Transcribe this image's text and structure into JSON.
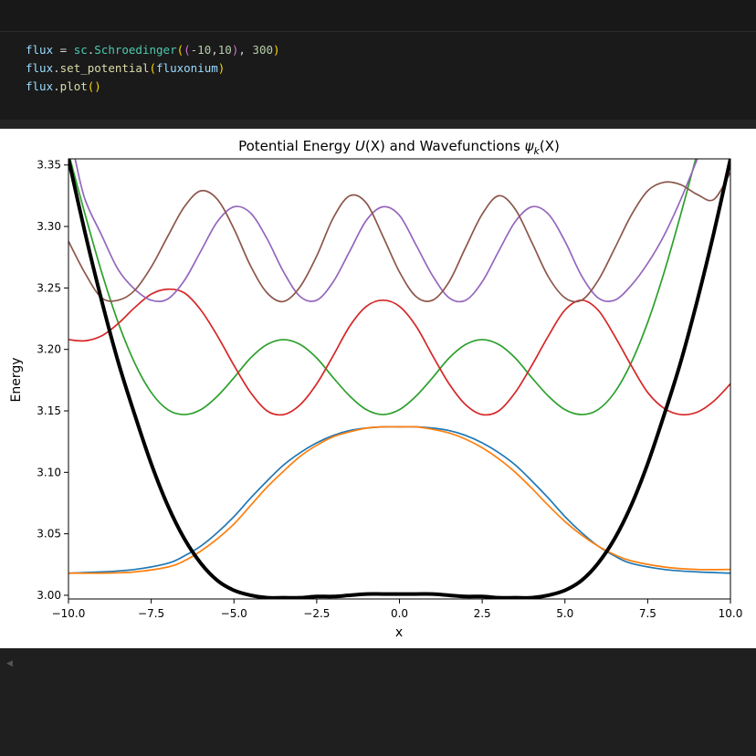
{
  "code": {
    "line1": [
      {
        "t": "flux",
        "c": "tok-var"
      },
      {
        "t": " = ",
        "c": "tok-op"
      },
      {
        "t": "sc",
        "c": "tok-mod"
      },
      {
        "t": ".",
        "c": "tok-op"
      },
      {
        "t": "Schroedinger",
        "c": "tok-mod"
      },
      {
        "t": "(",
        "c": "tok-br1"
      },
      {
        "t": "(",
        "c": "tok-br2"
      },
      {
        "t": "-10",
        "c": "tok-num"
      },
      {
        "t": ",",
        "c": "tok-op"
      },
      {
        "t": "10",
        "c": "tok-num"
      },
      {
        "t": ")",
        "c": "tok-br2"
      },
      {
        "t": ", ",
        "c": "tok-op"
      },
      {
        "t": "300",
        "c": "tok-num"
      },
      {
        "t": ")",
        "c": "tok-br1"
      }
    ],
    "line2": [
      {
        "t": "flux",
        "c": "tok-var"
      },
      {
        "t": ".",
        "c": "tok-op"
      },
      {
        "t": "set_potential",
        "c": "tok-fn"
      },
      {
        "t": "(",
        "c": "tok-br1"
      },
      {
        "t": "fluxonium",
        "c": "tok-var"
      },
      {
        "t": ")",
        "c": "tok-br1"
      }
    ],
    "line3": [
      {
        "t": "flux",
        "c": "tok-var"
      },
      {
        "t": ".",
        "c": "tok-op"
      },
      {
        "t": "plot",
        "c": "tok-fn"
      },
      {
        "t": "()",
        "c": "tok-br1"
      }
    ]
  },
  "chart_data": {
    "type": "line",
    "title": "Potential Energy U(X) and Wavefunctions ψk(X)",
    "title_parts": {
      "prefix": "Potential Energy ",
      "u": "U",
      "ux": "(X)",
      "mid": " and Wavefunctions ",
      "psi": "ψ",
      "k": "k",
      "px": "(X)"
    },
    "xlabel": "x",
    "ylabel": "Energy",
    "xlim": [
      -10,
      10
    ],
    "ylim": [
      2.997,
      3.355
    ],
    "xticks": [
      -10,
      -7.5,
      -5,
      -2.5,
      0,
      2.5,
      5,
      7.5,
      10
    ],
    "xtick_labels": [
      "−10.0",
      "−7.5",
      "−5.0",
      "−2.5",
      "0.0",
      "2.5",
      "5.0",
      "7.5",
      "10.0"
    ],
    "yticks": [
      3.0,
      3.05,
      3.1,
      3.15,
      3.2,
      3.25,
      3.3,
      3.35
    ],
    "ytick_labels": [
      "3.00",
      "3.05",
      "3.10",
      "3.15",
      "3.20",
      "3.25",
      "3.30",
      "3.35"
    ],
    "grid": false,
    "series": [
      {
        "color": "#000000",
        "points": [
          [
            -10,
            3.355
          ],
          [
            -9.5,
            3.295
          ],
          [
            -9,
            3.24
          ],
          [
            -8.5,
            3.19
          ],
          [
            -8,
            3.147
          ],
          [
            -7.5,
            3.107
          ],
          [
            -7,
            3.073
          ],
          [
            -6.5,
            3.046
          ],
          [
            -6,
            3.026
          ],
          [
            -5.5,
            3.012
          ],
          [
            -5,
            3.004
          ],
          [
            -4.5,
            3.0
          ],
          [
            -4,
            2.998
          ],
          [
            -3.5,
            2.998
          ],
          [
            -3,
            2.998
          ],
          [
            -2.5,
            2.999
          ],
          [
            -2,
            2.999
          ],
          [
            -1.5,
            3.0
          ],
          [
            -1,
            3.001
          ],
          [
            -0.5,
            3.001
          ],
          [
            0,
            3.001
          ],
          [
            0.5,
            3.001
          ],
          [
            1,
            3.001
          ],
          [
            1.5,
            3.0
          ],
          [
            2,
            2.999
          ],
          [
            2.5,
            2.999
          ],
          [
            3,
            2.998
          ],
          [
            3.5,
            2.998
          ],
          [
            4,
            2.998
          ],
          [
            4.5,
            3.0
          ],
          [
            5,
            3.004
          ],
          [
            5.5,
            3.012
          ],
          [
            6,
            3.026
          ],
          [
            6.5,
            3.046
          ],
          [
            7,
            3.073
          ],
          [
            7.5,
            3.107
          ],
          [
            8,
            3.147
          ],
          [
            8.5,
            3.19
          ],
          [
            9,
            3.24
          ],
          [
            9.5,
            3.295
          ],
          [
            10,
            3.355
          ]
        ]
      },
      {
        "color": "#1f77b4",
        "points": [
          [
            -10,
            3.018
          ],
          [
            -9,
            3.019
          ],
          [
            -8,
            3.021
          ],
          [
            -7,
            3.026
          ],
          [
            -6.5,
            3.032
          ],
          [
            -6,
            3.04
          ],
          [
            -5.5,
            3.051
          ],
          [
            -5,
            3.064
          ],
          [
            -4.5,
            3.079
          ],
          [
            -4,
            3.093
          ],
          [
            -3.5,
            3.106
          ],
          [
            -3,
            3.116
          ],
          [
            -2.5,
            3.124
          ],
          [
            -2,
            3.13
          ],
          [
            -1.5,
            3.134
          ],
          [
            -1,
            3.136
          ],
          [
            -0.5,
            3.137
          ],
          [
            0,
            3.137
          ],
          [
            0.5,
            3.137
          ],
          [
            1,
            3.136
          ],
          [
            1.5,
            3.134
          ],
          [
            2,
            3.13
          ],
          [
            2.5,
            3.124
          ],
          [
            3,
            3.116
          ],
          [
            3.5,
            3.106
          ],
          [
            4,
            3.093
          ],
          [
            4.5,
            3.079
          ],
          [
            5,
            3.064
          ],
          [
            5.5,
            3.051
          ],
          [
            6,
            3.04
          ],
          [
            6.5,
            3.032
          ],
          [
            7,
            3.026
          ],
          [
            8,
            3.021
          ],
          [
            9,
            3.019
          ],
          [
            10,
            3.018
          ]
        ]
      },
      {
        "color": "#ff7f0e",
        "points": [
          [
            -10,
            3.018
          ],
          [
            -9,
            3.018
          ],
          [
            -8,
            3.019
          ],
          [
            -7,
            3.023
          ],
          [
            -6.5,
            3.028
          ],
          [
            -6,
            3.036
          ],
          [
            -5.5,
            3.046
          ],
          [
            -5,
            3.058
          ],
          [
            -4.5,
            3.073
          ],
          [
            -4,
            3.088
          ],
          [
            -3.5,
            3.101
          ],
          [
            -3,
            3.113
          ],
          [
            -2.5,
            3.122
          ],
          [
            -2,
            3.129
          ],
          [
            -1.5,
            3.133
          ],
          [
            -1,
            3.136
          ],
          [
            -0.5,
            3.137
          ],
          [
            0,
            3.137
          ],
          [
            0.5,
            3.137
          ],
          [
            1,
            3.135
          ],
          [
            1.5,
            3.132
          ],
          [
            2,
            3.127
          ],
          [
            2.5,
            3.12
          ],
          [
            3,
            3.111
          ],
          [
            3.5,
            3.1
          ],
          [
            4,
            3.087
          ],
          [
            4.5,
            3.073
          ],
          [
            5,
            3.06
          ],
          [
            5.5,
            3.049
          ],
          [
            6,
            3.04
          ],
          [
            6.5,
            3.033
          ],
          [
            7,
            3.028
          ],
          [
            8,
            3.023
          ],
          [
            9,
            3.021
          ],
          [
            10,
            3.021
          ]
        ]
      },
      {
        "color": "#2ca02c",
        "points": [
          [
            -10,
            3.36
          ],
          [
            -9.5,
            3.31
          ],
          [
            -9,
            3.263
          ],
          [
            -8.5,
            3.222
          ],
          [
            -8,
            3.189
          ],
          [
            -7.5,
            3.165
          ],
          [
            -7,
            3.151
          ],
          [
            -6.5,
            3.147
          ],
          [
            -6,
            3.151
          ],
          [
            -5.5,
            3.162
          ],
          [
            -5,
            3.177
          ],
          [
            -4.5,
            3.193
          ],
          [
            -4,
            3.204
          ],
          [
            -3.5,
            3.208
          ],
          [
            -3,
            3.204
          ],
          [
            -2.5,
            3.193
          ],
          [
            -2,
            3.177
          ],
          [
            -1.5,
            3.162
          ],
          [
            -1,
            3.151
          ],
          [
            -0.5,
            3.147
          ],
          [
            0,
            3.151
          ],
          [
            0.5,
            3.162
          ],
          [
            1,
            3.177
          ],
          [
            1.5,
            3.193
          ],
          [
            2,
            3.204
          ],
          [
            2.5,
            3.208
          ],
          [
            3,
            3.204
          ],
          [
            3.5,
            3.193
          ],
          [
            4,
            3.177
          ],
          [
            4.5,
            3.162
          ],
          [
            5,
            3.151
          ],
          [
            5.5,
            3.147
          ],
          [
            6,
            3.151
          ],
          [
            6.5,
            3.165
          ],
          [
            7,
            3.189
          ],
          [
            7.5,
            3.222
          ],
          [
            8,
            3.263
          ],
          [
            8.5,
            3.31
          ],
          [
            9,
            3.36
          ]
        ]
      },
      {
        "color": "#d62728",
        "points": [
          [
            -10,
            3.208
          ],
          [
            -9.5,
            3.207
          ],
          [
            -9,
            3.211
          ],
          [
            -8.5,
            3.221
          ],
          [
            -8,
            3.234
          ],
          [
            -7.5,
            3.245
          ],
          [
            -7,
            3.249
          ],
          [
            -6.5,
            3.246
          ],
          [
            -6,
            3.232
          ],
          [
            -5.5,
            3.211
          ],
          [
            -5,
            3.187
          ],
          [
            -4.5,
            3.165
          ],
          [
            -4,
            3.15
          ],
          [
            -3.5,
            3.147
          ],
          [
            -3,
            3.155
          ],
          [
            -2.5,
            3.172
          ],
          [
            -2,
            3.195
          ],
          [
            -1.5,
            3.219
          ],
          [
            -1,
            3.235
          ],
          [
            -0.5,
            3.24
          ],
          [
            0,
            3.235
          ],
          [
            0.5,
            3.219
          ],
          [
            1,
            3.195
          ],
          [
            1.5,
            3.172
          ],
          [
            2,
            3.155
          ],
          [
            2.5,
            3.147
          ],
          [
            3,
            3.15
          ],
          [
            3.5,
            3.165
          ],
          [
            4,
            3.187
          ],
          [
            4.5,
            3.211
          ],
          [
            5,
            3.232
          ],
          [
            5.5,
            3.24
          ],
          [
            6,
            3.232
          ],
          [
            6.5,
            3.211
          ],
          [
            7,
            3.187
          ],
          [
            7.5,
            3.165
          ],
          [
            8,
            3.152
          ],
          [
            8.5,
            3.147
          ],
          [
            9,
            3.149
          ],
          [
            9.5,
            3.158
          ],
          [
            10,
            3.172
          ]
        ]
      },
      {
        "color": "#9467bd",
        "points": [
          [
            -9.8,
            3.355
          ],
          [
            -9.5,
            3.322
          ],
          [
            -9,
            3.293
          ],
          [
            -8.5,
            3.265
          ],
          [
            -8,
            3.249
          ],
          [
            -7.5,
            3.24
          ],
          [
            -7,
            3.241
          ],
          [
            -6.5,
            3.256
          ],
          [
            -6,
            3.28
          ],
          [
            -5.5,
            3.304
          ],
          [
            -5,
            3.316
          ],
          [
            -4.5,
            3.311
          ],
          [
            -4,
            3.29
          ],
          [
            -3.5,
            3.263
          ],
          [
            -3,
            3.243
          ],
          [
            -2.5,
            3.24
          ],
          [
            -2,
            3.255
          ],
          [
            -1.5,
            3.28
          ],
          [
            -1,
            3.305
          ],
          [
            -0.5,
            3.316
          ],
          [
            0,
            3.309
          ],
          [
            0.5,
            3.285
          ],
          [
            1,
            3.26
          ],
          [
            1.5,
            3.242
          ],
          [
            2,
            3.24
          ],
          [
            2.5,
            3.255
          ],
          [
            3,
            3.28
          ],
          [
            3.5,
            3.304
          ],
          [
            4,
            3.316
          ],
          [
            4.5,
            3.31
          ],
          [
            5,
            3.288
          ],
          [
            5.5,
            3.26
          ],
          [
            6,
            3.242
          ],
          [
            6.5,
            3.24
          ],
          [
            7,
            3.252
          ],
          [
            7.5,
            3.27
          ],
          [
            8,
            3.293
          ],
          [
            8.5,
            3.322
          ],
          [
            9,
            3.355
          ]
        ]
      },
      {
        "color": "#8c564b",
        "points": [
          [
            -10,
            3.288
          ],
          [
            -9.5,
            3.262
          ],
          [
            -9,
            3.242
          ],
          [
            -8.5,
            3.24
          ],
          [
            -8,
            3.248
          ],
          [
            -7.5,
            3.267
          ],
          [
            -7,
            3.292
          ],
          [
            -6.5,
            3.316
          ],
          [
            -6,
            3.329
          ],
          [
            -5.5,
            3.322
          ],
          [
            -5,
            3.298
          ],
          [
            -4.5,
            3.268
          ],
          [
            -4,
            3.246
          ],
          [
            -3.5,
            3.239
          ],
          [
            -3,
            3.251
          ],
          [
            -2.5,
            3.276
          ],
          [
            -2,
            3.307
          ],
          [
            -1.5,
            3.325
          ],
          [
            -1,
            3.319
          ],
          [
            -0.5,
            3.292
          ],
          [
            0,
            3.263
          ],
          [
            0.5,
            3.243
          ],
          [
            1,
            3.24
          ],
          [
            1.5,
            3.255
          ],
          [
            2,
            3.283
          ],
          [
            2.5,
            3.31
          ],
          [
            3,
            3.325
          ],
          [
            3.5,
            3.314
          ],
          [
            4,
            3.287
          ],
          [
            4.5,
            3.259
          ],
          [
            5,
            3.242
          ],
          [
            5.5,
            3.24
          ],
          [
            6,
            3.256
          ],
          [
            6.5,
            3.282
          ],
          [
            7,
            3.309
          ],
          [
            7.5,
            3.329
          ],
          [
            8,
            3.336
          ],
          [
            8.5,
            3.334
          ],
          [
            9,
            3.326
          ],
          [
            9.5,
            3.322
          ],
          [
            10,
            3.344
          ]
        ]
      }
    ]
  }
}
